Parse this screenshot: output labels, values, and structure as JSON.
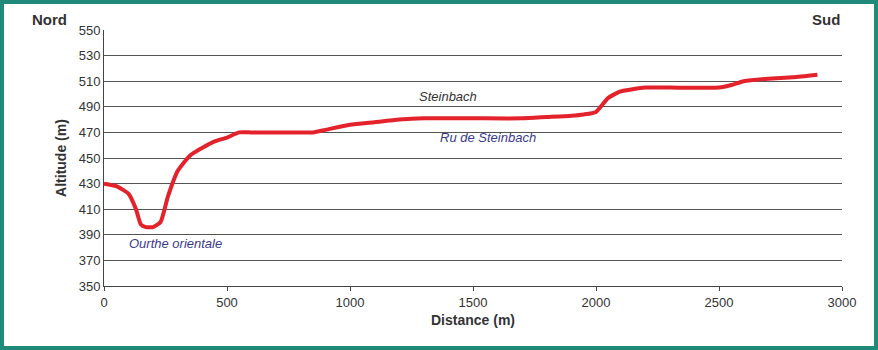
{
  "chart_data": {
    "type": "line",
    "x_label": "Distance (m)",
    "y_label": "Altitude (m)",
    "side_labels": [
      "Nord",
      "Sud"
    ],
    "x": [
      0,
      50,
      100,
      130,
      150,
      170,
      200,
      230,
      260,
      300,
      350,
      400,
      450,
      500,
      550,
      600,
      700,
      850,
      900,
      1000,
      1100,
      1200,
      1300,
      1500,
      1700,
      1800,
      1900,
      1950,
      2000,
      2050,
      2100,
      2200,
      2300,
      2500,
      2550,
      2600,
      2700,
      2800,
      2900
    ],
    "values": [
      430,
      428,
      422,
      410,
      398,
      396,
      396,
      400,
      420,
      440,
      452,
      458,
      463,
      466,
      470,
      470,
      470,
      470,
      472,
      476,
      478,
      480,
      481,
      481,
      481,
      482,
      483,
      484,
      486,
      497,
      502,
      505,
      505,
      505,
      507,
      510,
      512,
      513,
      515
    ],
    "color": "#e3222b",
    "xlim": [
      0,
      3000
    ],
    "xticks": [
      0,
      500,
      1000,
      1500,
      2000,
      2500,
      3000
    ],
    "ylim": [
      350,
      550
    ],
    "yticks": [
      350,
      370,
      390,
      410,
      430,
      450,
      470,
      490,
      510,
      530,
      550
    ],
    "grid": true,
    "annotations": [
      {
        "text": "Steinbach",
        "x": 1400,
        "y": 498
      },
      {
        "text": "Ru de Steinbach",
        "x": 1560,
        "y": 466
      },
      {
        "text": "Ourthe orientale",
        "x": 290,
        "y": 383
      }
    ]
  }
}
